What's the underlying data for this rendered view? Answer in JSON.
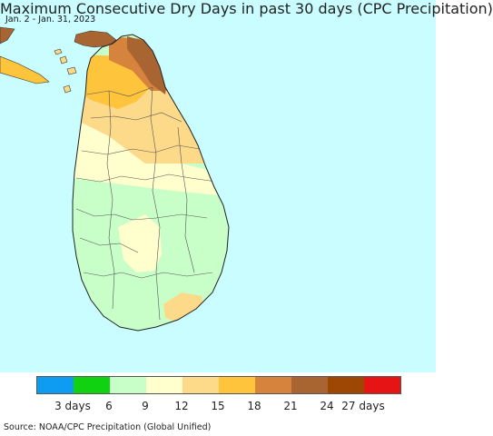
{
  "title": "Maximum Consecutive Dry Days in past 30 days (CPC Precipitation)",
  "subtitle": "Jan. 2 - Jan. 31, 2023",
  "source": "Source: NOAA/CPC Precipitation (Global Unified)",
  "colors": {
    "ocean": "#c9fdff",
    "border": "#333333"
  },
  "legend": {
    "colors": [
      "#0d9cf2",
      "#10d210",
      "#c8fec8",
      "#fffecd",
      "#fdd98a",
      "#fdc43c",
      "#d6843d",
      "#a86532",
      "#9e4604",
      "#e61414"
    ],
    "labels": [
      "3 days",
      "6",
      "9",
      "12",
      "15",
      "18",
      "21",
      "24",
      "27 days"
    ]
  }
}
